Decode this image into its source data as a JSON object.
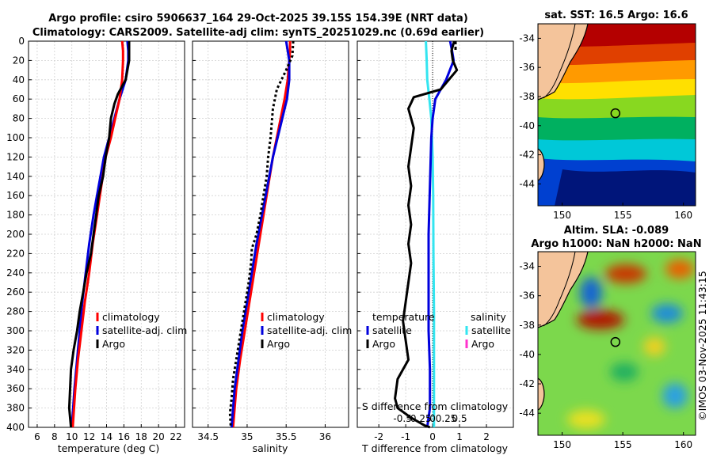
{
  "title": {
    "line1": "Argo profile: csiro 5906637_164 29-Oct-2025 39.15S 154.39E (NRT data)",
    "line2": "Climatology: CARS2009. Satellite-adj clim: synTS_20251029.nc (0.69d earlier)"
  },
  "colors": {
    "climatology": "#ff0000",
    "satellite_clim": "#0000dd",
    "argo": "#000000",
    "satellite_sal": "#33e5f0",
    "argo_sal": "#ff33cc",
    "land": "#f4c49b",
    "sst_warm": "#b00000",
    "sst_cool": "#00157a"
  },
  "credit": "©IMOS 03-Nov-2025 11:43:15",
  "chart_data": [
    {
      "type": "line",
      "name": "temperature",
      "xlabel": "temperature (deg C)",
      "ylabel": "",
      "xlim": [
        5,
        23
      ],
      "ylim": [
        0,
        400
      ],
      "y_reversed": true,
      "grid": true,
      "xticks": [
        6,
        8,
        10,
        12,
        14,
        16,
        18,
        20,
        22
      ],
      "yticks": [
        0,
        20,
        40,
        60,
        80,
        100,
        120,
        140,
        160,
        180,
        200,
        220,
        240,
        260,
        280,
        300,
        320,
        340,
        360,
        380,
        400
      ],
      "legend": [
        "climatology",
        "satellite-adj. clim",
        "Argo"
      ],
      "legend_position": "bottom-right",
      "series": [
        {
          "name": "climatology",
          "style": "solid",
          "x": [
            15.8,
            15.9,
            15.9,
            15.8,
            15.5,
            15.0,
            14.5,
            13.9,
            13.4,
            12.9,
            12.4,
            12.0,
            11.5,
            11.1,
            10.7,
            10.4,
            10.1
          ],
          "depth": [
            0,
            10,
            20,
            40,
            60,
            80,
            100,
            120,
            150,
            180,
            210,
            240,
            270,
            300,
            330,
            360,
            400
          ]
        },
        {
          "name": "satellite-adj. clim",
          "style": "solid",
          "x": [
            16.4,
            16.5,
            16.5,
            16.2,
            15.5,
            14.9,
            14.3,
            13.7,
            13.1,
            12.5,
            12.0,
            11.6,
            11.2,
            10.9,
            10.6,
            10.3,
            10.0
          ],
          "depth": [
            0,
            10,
            20,
            40,
            60,
            80,
            100,
            120,
            150,
            180,
            210,
            240,
            270,
            300,
            330,
            360,
            400
          ]
        },
        {
          "name": "Argo",
          "style": "solid",
          "x": [
            16.6,
            16.6,
            16.6,
            16.4,
            16.2,
            15.3,
            14.9,
            14.5,
            14.3,
            13.9,
            13.6,
            13.1,
            12.8,
            12.5,
            12.2,
            11.7,
            11.3,
            10.9,
            10.6,
            10.2,
            9.9,
            9.8,
            9.7,
            9.9
          ],
          "depth": [
            0,
            10,
            20,
            30,
            40,
            55,
            65,
            80,
            100,
            120,
            140,
            160,
            180,
            200,
            220,
            240,
            260,
            280,
            300,
            320,
            340,
            360,
            380,
            400
          ]
        }
      ]
    },
    {
      "type": "line",
      "name": "salinity",
      "xlabel": "salinity",
      "ylabel": "",
      "xlim": [
        34.3,
        36.3
      ],
      "ylim": [
        0,
        400
      ],
      "y_reversed": true,
      "grid": true,
      "xticks": [
        34.5,
        35,
        35.5,
        36
      ],
      "legend": [
        "climatology",
        "satellite-adj. clim",
        "Argo"
      ],
      "legend_position": "bottom-right",
      "series": [
        {
          "name": "climatology",
          "style": "solid",
          "x": [
            35.55,
            35.55,
            35.54,
            35.52,
            35.48,
            35.43,
            35.38,
            35.33,
            35.27,
            35.21,
            35.15,
            35.09,
            35.03,
            34.97,
            34.91,
            34.86,
            34.82
          ],
          "depth": [
            0,
            10,
            20,
            40,
            60,
            80,
            100,
            120,
            150,
            180,
            210,
            240,
            270,
            300,
            330,
            360,
            400
          ]
        },
        {
          "name": "satellite-adj. clim",
          "style": "solid",
          "x": [
            35.5,
            35.52,
            35.54,
            35.54,
            35.51,
            35.45,
            35.39,
            35.33,
            35.26,
            35.19,
            35.12,
            35.06,
            35.0,
            34.94,
            34.89,
            34.84,
            34.8
          ],
          "depth": [
            0,
            10,
            20,
            40,
            60,
            80,
            100,
            120,
            150,
            180,
            210,
            240,
            270,
            300,
            330,
            360,
            400
          ]
        },
        {
          "name": "Argo",
          "style": "dotted",
          "x": [
            35.59,
            35.58,
            35.5,
            35.38,
            35.33,
            35.3,
            35.27,
            35.25,
            35.21,
            35.17,
            35.12,
            35.06,
            35.05,
            35.02,
            34.98,
            34.94,
            34.9,
            34.86,
            34.82,
            34.8,
            34.78,
            34.79
          ],
          "depth": [
            0,
            15,
            30,
            50,
            70,
            100,
            120,
            140,
            160,
            180,
            200,
            215,
            230,
            250,
            270,
            290,
            310,
            330,
            350,
            370,
            385,
            400
          ]
        }
      ]
    },
    {
      "type": "line",
      "name": "difference",
      "xlabel": "T difference from climatology",
      "xlabel_top": "S difference from climatology",
      "xlim": [
        -2.8,
        3.0
      ],
      "ylim": [
        0,
        400
      ],
      "y_reversed": true,
      "grid": true,
      "xticks": [
        -2,
        -1,
        0,
        1,
        2
      ],
      "s_ticks": [
        "-0.5",
        "-0.25",
        "0",
        "0.25",
        "0.5"
      ],
      "legend_temperature_heading": "temperature",
      "legend_salinity_heading": "salinity",
      "legend_temperature": [
        "satellite",
        "Argo"
      ],
      "legend_salinity": [
        "satellite",
        "Argo"
      ],
      "series": [
        {
          "name": "T satellite",
          "style": "solid",
          "x": [
            0.65,
            0.72,
            0.78,
            0.5,
            0.1,
            0.0,
            -0.05,
            -0.1,
            -0.15,
            -0.15,
            -0.15,
            -0.1,
            -0.1,
            -0.2
          ],
          "depth": [
            0,
            10,
            20,
            40,
            60,
            80,
            100,
            150,
            200,
            250,
            300,
            340,
            380,
            400
          ]
        },
        {
          "name": "T Argo",
          "style": "solid",
          "x": [
            0.8,
            0.7,
            0.75,
            0.9,
            0.3,
            -0.7,
            -0.9,
            -0.7,
            -0.8,
            -0.9,
            -0.8,
            -0.9,
            -0.8,
            -0.9,
            -0.8,
            -0.9,
            -1.0,
            -1.1,
            -1.0,
            -0.9,
            -1.3,
            -1.4,
            -1.3,
            -0.8,
            -0.3,
            -0.1
          ],
          "depth": [
            0,
            10,
            20,
            30,
            50,
            58,
            70,
            90,
            110,
            130,
            150,
            170,
            190,
            210,
            230,
            250,
            270,
            290,
            310,
            330,
            350,
            370,
            380,
            390,
            398,
            400
          ]
        },
        {
          "name": "S satellite",
          "style": "solid",
          "x": [
            -0.25,
            -0.22,
            -0.2,
            -0.12,
            -0.05,
            0.0,
            0.02,
            0.03,
            0.05,
            0.05,
            0.05
          ],
          "depth": [
            0,
            20,
            40,
            60,
            80,
            120,
            160,
            220,
            280,
            340,
            400
          ]
        },
        {
          "name": "S Argo",
          "style": "dashed",
          "x": [
            0.85,
            0.85
          ],
          "depth": [
            0,
            10
          ]
        }
      ]
    },
    {
      "type": "heatmap",
      "name": "sst-map",
      "title": "sat. SST: 16.5 Argo: 16.6",
      "xlim": [
        148,
        161
      ],
      "ylim": [
        -45.5,
        -33
      ],
      "xticks": [
        150,
        155,
        160
      ],
      "yticks": [
        -34,
        -36,
        -38,
        -40,
        -42,
        -44
      ],
      "marker": {
        "lon": 154.39,
        "lat": -39.15
      }
    },
    {
      "type": "heatmap",
      "name": "sla-map",
      "title_line1": "Altim. SLA: -0.089",
      "title_line2": "Argo h1000: NaN h2000: NaN",
      "xlim": [
        148,
        161
      ],
      "ylim": [
        -45.5,
        -33
      ],
      "xticks": [
        150,
        155,
        160
      ],
      "yticks": [
        -34,
        -36,
        -38,
        -40,
        -42,
        -44
      ],
      "marker": {
        "lon": 154.39,
        "lat": -39.15
      }
    }
  ]
}
